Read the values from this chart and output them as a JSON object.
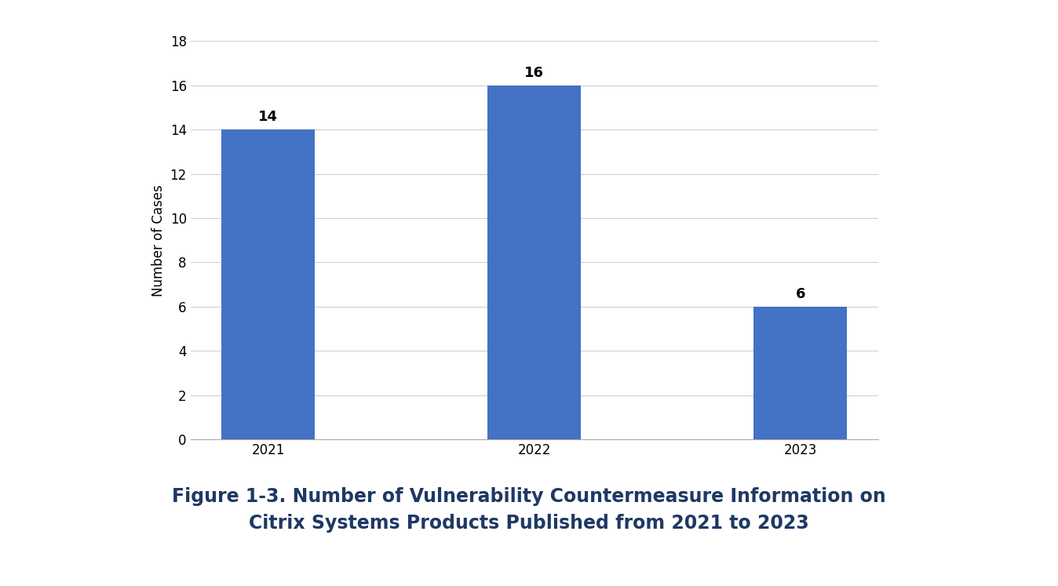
{
  "categories": [
    "2021",
    "2022",
    "2023"
  ],
  "values": [
    14,
    16,
    6
  ],
  "bar_color": "#4472C4",
  "ylabel": "Number of Cases",
  "xlabel": "",
  "ylim": [
    0,
    18
  ],
  "yticks": [
    0,
    2,
    4,
    6,
    8,
    10,
    12,
    14,
    16,
    18
  ],
  "bar_width": 0.35,
  "annotation_fontsize": 13,
  "annotation_fontweight": "bold",
  "ylabel_fontsize": 12,
  "tick_fontsize": 12,
  "background_color": "#ffffff",
  "grid_color": "#d0d0d0",
  "caption_line1": "Figure 1-3. Number of Vulnerability Countermeasure Information on",
  "caption_line2": "Citrix Systems Products Published from 2021 to 2023",
  "caption_fontsize": 17,
  "caption_fontweight": "bold",
  "caption_color": "#1F3864"
}
